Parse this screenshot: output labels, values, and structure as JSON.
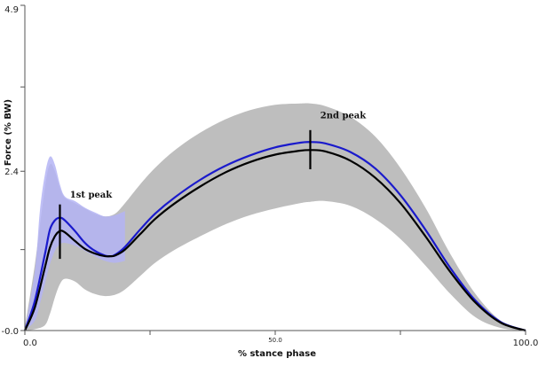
{
  "chart_data": {
    "type": "line",
    "xlabel": "% stance phase",
    "ylabel": "Force (% BW)",
    "xlim": [
      0.0,
      100.0
    ],
    "ylim": [
      0.0,
      4.9
    ],
    "x_ticks": [
      {
        "value": 0,
        "label": "0.0"
      },
      {
        "value": 25,
        "label": ""
      },
      {
        "value": 50,
        "label": "50.0"
      },
      {
        "value": 75,
        "label": ""
      },
      {
        "value": 100,
        "label": "100.0"
      }
    ],
    "y_ticks": [
      {
        "value": 0,
        "label": "-0.0"
      },
      {
        "value": 1.22,
        "label": ""
      },
      {
        "value": 2.4,
        "label": "2.4"
      },
      {
        "value": 3.67,
        "label": ""
      },
      {
        "value": 4.9,
        "label": "4.9"
      }
    ],
    "colors": {
      "black_mean": "#000000",
      "blue_mean": "#1a1acc",
      "grey_band": "#bebebe",
      "blue_band": "#b4b4f5",
      "axis": "#555555"
    },
    "series": [
      {
        "key": "black_mean",
        "x": [
          0,
          2,
          4,
          5,
          6,
          7,
          8,
          10,
          12,
          14,
          16,
          17,
          18,
          20,
          23,
          26,
          30,
          35,
          40,
          45,
          50,
          55,
          57,
          60,
          65,
          70,
          75,
          80,
          85,
          90,
          95,
          100
        ],
        "y": [
          0,
          0.35,
          0.95,
          1.25,
          1.42,
          1.5,
          1.48,
          1.35,
          1.23,
          1.16,
          1.12,
          1.12,
          1.13,
          1.22,
          1.45,
          1.68,
          1.92,
          2.17,
          2.38,
          2.54,
          2.65,
          2.71,
          2.72,
          2.7,
          2.56,
          2.3,
          1.92,
          1.42,
          0.88,
          0.42,
          0.12,
          0
        ]
      },
      {
        "key": "blue_mean",
        "x": [
          0,
          2,
          4,
          5,
          6,
          7,
          8,
          10,
          12,
          14,
          16,
          17,
          18,
          20,
          23,
          26,
          30,
          35,
          40,
          45,
          50,
          55,
          57,
          60,
          65,
          70,
          75,
          80,
          85,
          90,
          95,
          100
        ],
        "y": [
          0,
          0.45,
          1.15,
          1.52,
          1.66,
          1.7,
          1.66,
          1.5,
          1.32,
          1.2,
          1.13,
          1.12,
          1.14,
          1.26,
          1.52,
          1.76,
          2.01,
          2.27,
          2.48,
          2.64,
          2.76,
          2.83,
          2.84,
          2.82,
          2.69,
          2.44,
          2.04,
          1.52,
          0.94,
          0.45,
          0.13,
          0
        ]
      }
    ],
    "bands": [
      {
        "key": "grey_band",
        "x": [
          0,
          2,
          4,
          5,
          6,
          7,
          8,
          10,
          12,
          14,
          16,
          18,
          20,
          23,
          26,
          30,
          35,
          40,
          45,
          50,
          55,
          57,
          60,
          65,
          70,
          75,
          80,
          85,
          90,
          95,
          100
        ],
        "upper": [
          0.05,
          1.0,
          2.15,
          2.5,
          2.4,
          2.15,
          2.0,
          1.92,
          1.84,
          1.76,
          1.72,
          1.76,
          1.92,
          2.2,
          2.45,
          2.72,
          2.98,
          3.18,
          3.32,
          3.4,
          3.42,
          3.42,
          3.38,
          3.22,
          2.92,
          2.45,
          1.85,
          1.15,
          0.55,
          0.15,
          0
        ],
        "lower": [
          0,
          0.02,
          0.08,
          0.25,
          0.5,
          0.7,
          0.78,
          0.74,
          0.62,
          0.55,
          0.52,
          0.54,
          0.62,
          0.82,
          1.02,
          1.22,
          1.42,
          1.6,
          1.74,
          1.84,
          1.92,
          1.94,
          1.95,
          1.88,
          1.68,
          1.38,
          0.98,
          0.55,
          0.2,
          0.04,
          0
        ]
      },
      {
        "key": "blue_band",
        "x": [
          0,
          2,
          3,
          4,
          5,
          6,
          7,
          8,
          10,
          12,
          14,
          16,
          18,
          20
        ],
        "upper": [
          0.02,
          0.9,
          1.8,
          2.35,
          2.62,
          2.5,
          2.2,
          2.02,
          1.95,
          1.85,
          1.78,
          1.72,
          1.74,
          1.8
        ],
        "lower": [
          0,
          0.15,
          0.4,
          0.7,
          1.0,
          1.2,
          1.3,
          1.32,
          1.28,
          1.2,
          1.12,
          1.05,
          1.02,
          1.05
        ]
      }
    ],
    "peak_markers": [
      {
        "x": 7,
        "y_low": 1.08,
        "y_high": 1.9,
        "label": "1st peak",
        "label_x": 9,
        "label_y": 2.0
      },
      {
        "x": 57,
        "y_low": 2.43,
        "y_high": 3.02,
        "label": "2nd peak",
        "label_x": 59,
        "label_y": 3.2
      }
    ],
    "grid": false
  }
}
